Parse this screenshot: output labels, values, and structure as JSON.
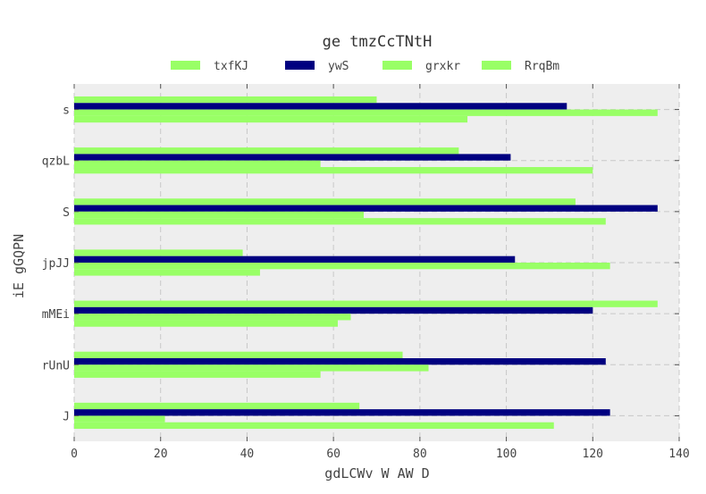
{
  "chart_data": {
    "type": "bar",
    "orientation": "horizontal",
    "title": "ge  tmzCcTNtH",
    "xlabel": "gdLCWv W AW D",
    "ylabel": "iE gGQPN",
    "categories": [
      "J",
      "rUnU",
      "mMEi",
      "jpJJ",
      "S",
      "qzbL",
      "s"
    ],
    "xlim": [
      0,
      140
    ],
    "xticks": [
      0,
      20,
      40,
      60,
      80,
      100,
      120,
      140
    ],
    "grid": true,
    "legend_position": "top",
    "series": [
      {
        "name": "txfKJ",
        "color": "#99ff66",
        "values": [
          66,
          76,
          135,
          39,
          116,
          89,
          70
        ]
      },
      {
        "name": "ywS",
        "color": "#000080",
        "values": [
          124,
          123,
          120,
          102,
          135,
          101,
          114
        ]
      },
      {
        "name": "grxkr",
        "color": "#99ff66",
        "values": [
          21,
          82,
          64,
          124,
          67,
          57,
          135
        ]
      },
      {
        "name": "RrqBm",
        "color": "#99ff66",
        "values": [
          111,
          57,
          61,
          43,
          123,
          120,
          91
        ]
      }
    ]
  }
}
